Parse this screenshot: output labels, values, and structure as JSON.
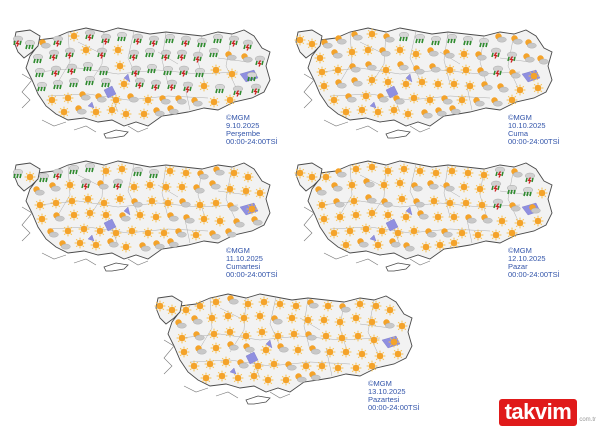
{
  "colors": {
    "land": "#f2f2f2",
    "border": "#9a9a9a",
    "coast": "#4a4a4a",
    "lake": "#8f8fe0",
    "sun": "#f4a32a",
    "sun_ray": "#f7c04a",
    "cloud": "#c8c8c8",
    "rain": "#2e8b2e",
    "storm": "#cc2222",
    "caption": "#3355aa"
  },
  "panels": [
    {
      "source": "©MGM",
      "date": "9.10.2025",
      "day": "Perşembe",
      "hours": "00:00-24:00TSİ",
      "icon_mix": "rainy"
    },
    {
      "source": "©MGM",
      "date": "10.10.2025",
      "day": "Cuma",
      "hours": "00:00-24:00TSİ",
      "icon_mix": "mixed"
    },
    {
      "source": "©MGM",
      "date": "11.10.2025",
      "day": "Cumartesi",
      "hours": "00:00-24:00TSİ",
      "icon_mix": "north-rain"
    },
    {
      "source": "©MGM",
      "date": "12.10.2025",
      "day": "Pazar",
      "hours": "00:00-24:00TSİ",
      "icon_mix": "northeast-rain"
    },
    {
      "source": "©MGM",
      "date": "13.10.2025",
      "day": "Pazartesi",
      "hours": "00:00-24:00TSİ",
      "icon_mix": "sunny"
    }
  ],
  "watermark": {
    "brand": "takvim",
    "domain": "com.tr"
  }
}
